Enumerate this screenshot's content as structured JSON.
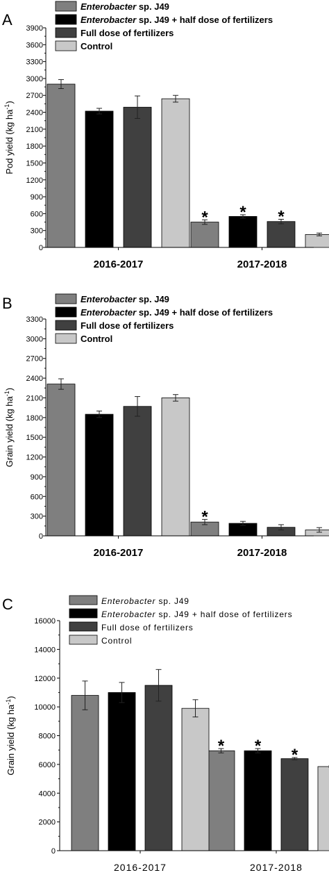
{
  "colors": {
    "series": [
      "#7f7f7f",
      "#000000",
      "#404040",
      "#c8c8c8"
    ],
    "axis": "#000000",
    "error_bar": "#000000"
  },
  "chart_data": [
    {
      "type": "bar",
      "panel_letter": "A",
      "categories": [
        "2016-2017",
        "2017-2018"
      ],
      "legend": [
        {
          "italic": "Enterobacter",
          "rest": " sp. J49"
        },
        {
          "italic": "Enterobacter",
          "rest": " sp. J49 + half dose of fertilizers"
        },
        {
          "italic": "",
          "rest": "Full dose of fertilizers"
        },
        {
          "italic": "",
          "rest": "Control"
        }
      ],
      "ylabel": "Pod yield (kg ha",
      "ylabel_sup": "-1",
      "ylabel_end": ")",
      "ylim": [
        0,
        3900
      ],
      "yticks": [
        0,
        300,
        600,
        900,
        1200,
        1500,
        1800,
        2100,
        2400,
        2700,
        3000,
        3300,
        3600,
        3900
      ],
      "series": [
        {
          "values": [
            2900,
            450
          ],
          "errors": [
            80,
            40
          ]
        },
        {
          "values": [
            2420,
            550
          ],
          "errors": [
            50,
            30
          ]
        },
        {
          "values": [
            2490,
            460
          ],
          "errors": [
            200,
            40
          ]
        },
        {
          "values": [
            2640,
            230
          ],
          "errors": [
            60,
            25
          ]
        }
      ],
      "significance_mark": "*",
      "significant": [
        [
          false,
          true
        ],
        [
          false,
          true
        ],
        [
          false,
          true
        ],
        [
          false,
          false
        ]
      ],
      "legend_placement": "top-left"
    },
    {
      "type": "bar",
      "panel_letter": "B",
      "categories": [
        "2016-2017",
        "2017-2018"
      ],
      "legend": [
        {
          "italic": "Enterobacter",
          "rest": " sp. J49"
        },
        {
          "italic": "Enterobacter",
          "rest": " sp. J49 + half dose of fertilizers"
        },
        {
          "italic": "",
          "rest": "Full dose of fertilizers"
        },
        {
          "italic": "",
          "rest": "Control"
        }
      ],
      "ylabel": "Grain yield (kg ha",
      "ylabel_sup": "-1",
      "ylabel_end": ")",
      "ylim": [
        0,
        3300
      ],
      "yticks": [
        0,
        300,
        600,
        900,
        1200,
        1500,
        1800,
        2100,
        2400,
        2700,
        3000,
        3300
      ],
      "series": [
        {
          "values": [
            2310,
            210
          ],
          "errors": [
            80,
            40
          ]
        },
        {
          "values": [
            1850,
            190
          ],
          "errors": [
            50,
            30
          ]
        },
        {
          "values": [
            1970,
            130
          ],
          "errors": [
            150,
            40
          ]
        },
        {
          "values": [
            2100,
            90
          ],
          "errors": [
            50,
            35
          ]
        }
      ],
      "significance_mark": "*",
      "significant": [
        [
          false,
          true
        ],
        [
          false,
          false
        ],
        [
          false,
          false
        ],
        [
          false,
          false
        ]
      ],
      "legend_placement": "top-left"
    },
    {
      "type": "bar",
      "panel_letter": "C",
      "categories": [
        "2016-2017",
        "2017-2018"
      ],
      "legend": [
        {
          "italic": "Enterobacter",
          "rest": " sp. J49"
        },
        {
          "italic": "Enterobacter",
          "rest": " sp. J49 + half dose of fertilizers"
        },
        {
          "italic": "",
          "rest": "Full dose of fertilizers"
        },
        {
          "italic": "",
          "rest": "Control"
        }
      ],
      "ylabel": "Grain yield (kg ha",
      "ylabel_sup": "-1",
      "ylabel_end": ")",
      "ylim": [
        0,
        16000
      ],
      "yticks": [
        0,
        2000,
        4000,
        6000,
        8000,
        10000,
        12000,
        14000,
        16000
      ],
      "series": [
        {
          "values": [
            10800,
            6950
          ],
          "errors": [
            1000,
            150
          ]
        },
        {
          "values": [
            11000,
            6950
          ],
          "errors": [
            700,
            150
          ]
        },
        {
          "values": [
            11500,
            6400
          ],
          "errors": [
            1100,
            80
          ]
        },
        {
          "values": [
            9900,
            5850
          ],
          "errors": [
            600,
            60
          ]
        }
      ],
      "significance_mark": "*",
      "significant": [
        [
          false,
          true
        ],
        [
          false,
          true
        ],
        [
          false,
          true
        ],
        [
          false,
          false
        ]
      ],
      "legend_placement": "top-left"
    }
  ]
}
